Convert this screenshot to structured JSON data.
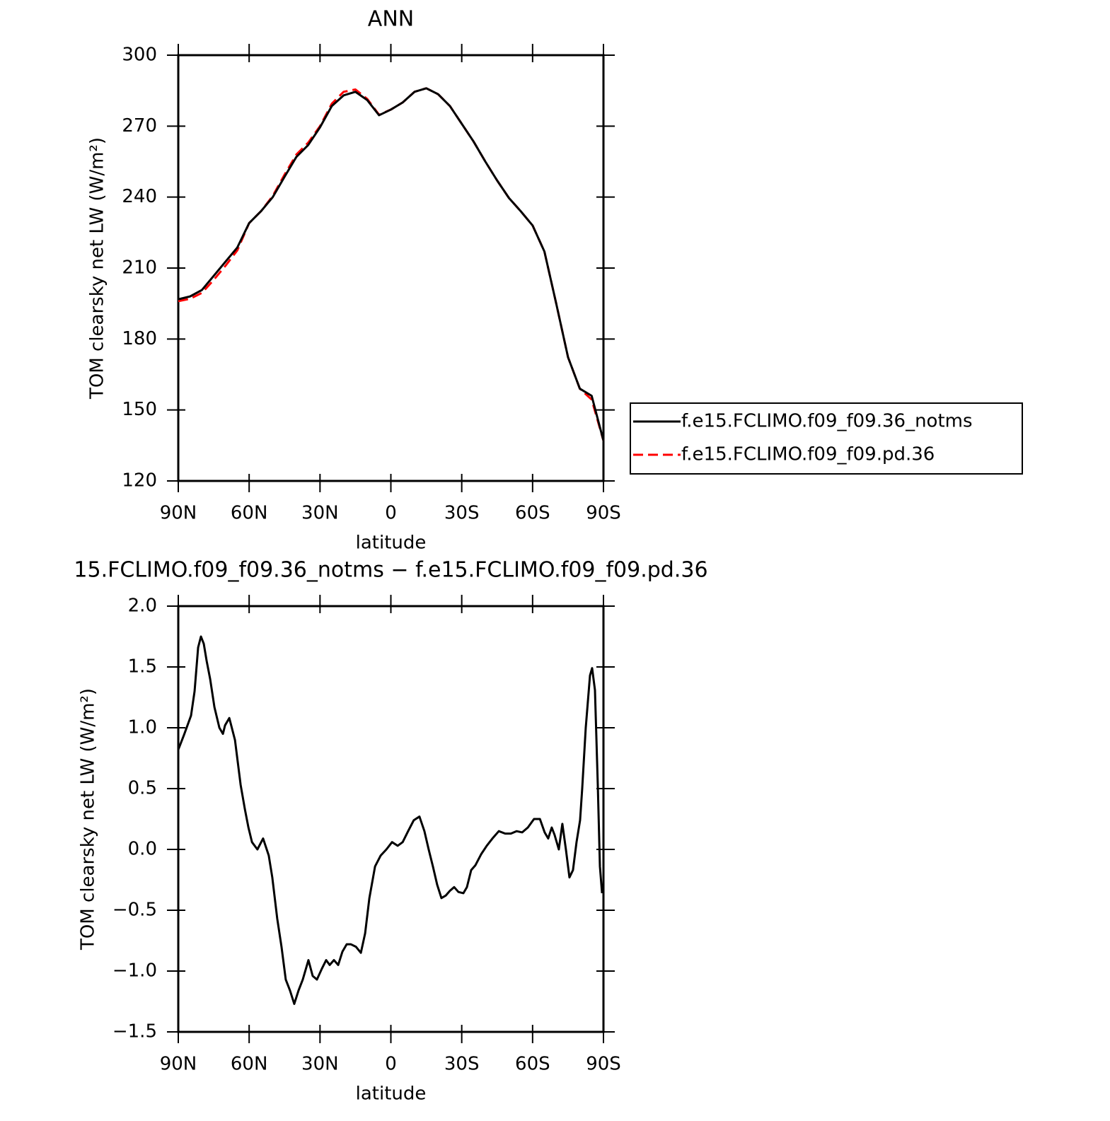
{
  "chart_data": [
    {
      "type": "line",
      "title": "ANN",
      "xlabel": "latitude",
      "ylabel": "TOM clearsky net LW (W/m²)",
      "x": [
        90,
        85,
        80,
        75,
        70,
        65,
        60,
        55,
        50,
        45,
        40,
        35,
        30,
        25,
        20,
        15,
        10,
        5,
        0,
        -5,
        -10,
        -15,
        -20,
        -25,
        -30,
        -35,
        -40,
        -45,
        -50,
        -55,
        -60,
        -65,
        -70,
        -75,
        -80,
        -85,
        -90
      ],
      "series": [
        {
          "name": "f.e15.FCLIMO.f09_f09.pd.36",
          "color": "#ff0000",
          "dash": true,
          "values": [
            196,
            197,
            199.5,
            205,
            211,
            217.5,
            229,
            234,
            240.5,
            249.5,
            258,
            263,
            270,
            279.5,
            284.5,
            285.5,
            281.5,
            274.8,
            277,
            280,
            284.5,
            286,
            283.5,
            278.5,
            271,
            263.5,
            255,
            247,
            239.6,
            234,
            228,
            217,
            195,
            172.3,
            159,
            154.4,
            137
          ]
        },
        {
          "name": "f.e15.FCLIMO.f09_f09.36_notms",
          "color": "#000000",
          "dash": false,
          "values": [
            196.8,
            198,
            200.7,
            206.7,
            212.7,
            218.7,
            229,
            234,
            240,
            248.6,
            257,
            262,
            269.5,
            278.5,
            283,
            284.5,
            281,
            274.6,
            277,
            280,
            284.5,
            286,
            283.5,
            278.5,
            271,
            263.5,
            255,
            247,
            239.6,
            234,
            228,
            217,
            195,
            172.3,
            159,
            156,
            137
          ]
        }
      ],
      "xlim": [
        90,
        -90
      ],
      "xticks": [
        {
          "value": 90,
          "label": "90N"
        },
        {
          "value": 60,
          "label": "60N"
        },
        {
          "value": 30,
          "label": "30N"
        },
        0,
        {
          "value": -30,
          "label": "30S"
        },
        {
          "value": -60,
          "label": "60S"
        },
        {
          "value": -90,
          "label": "90S"
        }
      ],
      "ylim": [
        120,
        300
      ],
      "yticks": [
        120,
        150,
        180,
        210,
        240,
        270,
        300
      ],
      "legend": "right"
    },
    {
      "type": "line",
      "title": "15.FCLIMO.f09_f09.36_notms − f.e15.FCLIMO.f09_f09.pd.36",
      "xlabel": "latitude",
      "ylabel": "TOM clearsky net LW (W/m²)",
      "x": [
        90,
        87.6,
        84.6,
        83.1,
        81.6,
        80.4,
        79.2,
        78.0,
        76.5,
        74.7,
        72.6,
        71.1,
        70.2,
        68.4,
        66.0,
        63.6,
        61.8,
        60.3,
        58.8,
        56.5,
        54.1,
        51.7,
        50.2,
        48.1,
        46.3,
        44.5,
        42.7,
        40.9,
        39.1,
        37.3,
        34.9,
        33.1,
        31.3,
        29.2,
        27.4,
        25.9,
        24.1,
        22.3,
        20.5,
        18.7,
        16.9,
        14.8,
        12.7,
        10.9,
        9.1,
        6.7,
        4.3,
        1.9,
        -0.5,
        -2.9,
        -5.0,
        -7.3,
        -9.7,
        -12.1,
        -14.2,
        -16.0,
        -17.8,
        -19.6,
        -21.4,
        -23.2,
        -25.0,
        -26.8,
        -28.6,
        -30.7,
        -32.2,
        -34.0,
        -35.8,
        -38.2,
        -40.6,
        -43.0,
        -45.7,
        -48.4,
        -50.8,
        -53.2,
        -55.6,
        -58.0,
        -60.6,
        -63.1,
        -65.1,
        -66.6,
        -68.1,
        -69.3,
        -71.1,
        -72.6,
        -74.1,
        -75.6,
        -77.1,
        -78.6,
        -80.1,
        -81.0,
        -82.5,
        -84.3,
        -85.2,
        -86.4,
        -87.6,
        -88.5,
        -89.4
      ],
      "series": [
        {
          "name": "f.e15.FCLIMO.f09_f09.36_notms",
          "color": "#000000",
          "dash": false,
          "values": [
            0.82,
            0.94,
            1.1,
            1.3,
            1.66,
            1.75,
            1.69,
            1.55,
            1.4,
            1.17,
            1.0,
            0.95,
            1.02,
            1.08,
            0.9,
            0.53,
            0.33,
            0.18,
            0.06,
            0.0,
            0.09,
            -0.05,
            -0.23,
            -0.57,
            -0.8,
            -1.07,
            -1.16,
            -1.27,
            -1.16,
            -1.07,
            -0.91,
            -1.04,
            -1.07,
            -0.98,
            -0.91,
            -0.95,
            -0.91,
            -0.95,
            -0.84,
            -0.78,
            -0.78,
            -0.8,
            -0.85,
            -0.69,
            -0.4,
            -0.14,
            -0.05,
            0.0,
            0.06,
            0.03,
            0.06,
            0.15,
            0.24,
            0.27,
            0.15,
            0.0,
            -0.14,
            -0.29,
            -0.4,
            -0.38,
            -0.34,
            -0.31,
            -0.35,
            -0.36,
            -0.31,
            -0.17,
            -0.13,
            -0.04,
            0.03,
            0.09,
            0.15,
            0.13,
            0.13,
            0.15,
            0.14,
            0.18,
            0.25,
            0.25,
            0.14,
            0.09,
            0.18,
            0.12,
            0.0,
            0.21,
            0.0,
            -0.23,
            -0.17,
            0.06,
            0.24,
            0.5,
            1.0,
            1.43,
            1.49,
            1.31,
            0.53,
            -0.14,
            -0.36
          ]
        }
      ],
      "xlim": [
        90,
        -90
      ],
      "xticks": [
        {
          "value": 90,
          "label": "90N"
        },
        {
          "value": 60,
          "label": "60N"
        },
        {
          "value": 30,
          "label": "30N"
        },
        0,
        {
          "value": -30,
          "label": "30S"
        },
        {
          "value": -60,
          "label": "60S"
        },
        {
          "value": -90,
          "label": "90S"
        }
      ],
      "ylim": [
        -1.5,
        2.0
      ],
      "yticks": [
        {
          "value": -1.5,
          "label": "−1.5"
        },
        {
          "value": -1.0,
          "label": "−1.0"
        },
        {
          "value": -0.5,
          "label": "−0.5"
        },
        {
          "value": 0.0,
          "label": "0.0"
        },
        0.5,
        {
          "value": 1.0,
          "label": "1.0"
        },
        1.5,
        {
          "value": 2.0,
          "label": "2.0"
        }
      ]
    }
  ]
}
